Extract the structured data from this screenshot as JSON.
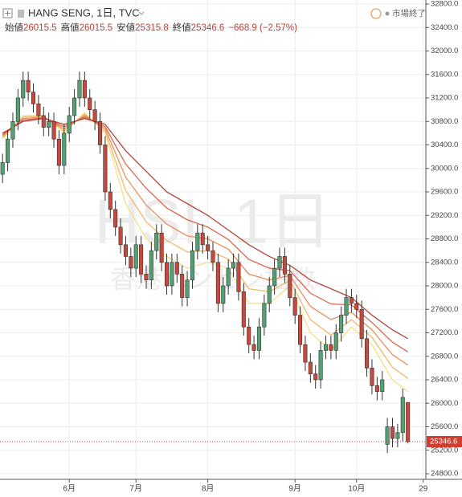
{
  "chart_data": {
    "type": "candlestick",
    "title": "HANG SENG, 1日, TVC",
    "status": "市場終了",
    "ohlc_labels": {
      "open": "始値",
      "high": "高値",
      "low": "安値",
      "close": "終値"
    },
    "change": "−668.9 (−2.57%)",
    "watermark": "HSI, 1日",
    "watermark_subtitle": "香港ハンセン指数",
    "categories": [
      null,
      null,
      null,
      null,
      null,
      null,
      null,
      null,
      null,
      null,
      null,
      null,
      null,
      "6月",
      null,
      null,
      null,
      null,
      null,
      null,
      null,
      null,
      null,
      null,
      null,
      null,
      "7月",
      null,
      null,
      null,
      null,
      null,
      null,
      null,
      null,
      null,
      null,
      null,
      null,
      null,
      "8月",
      null,
      null,
      null,
      null,
      null,
      null,
      null,
      null,
      null,
      null,
      null,
      null,
      null,
      null,
      null,
      null,
      "9月",
      null,
      null,
      null,
      null,
      null,
      null,
      null,
      null,
      null,
      null,
      null,
      "10月",
      null,
      null,
      null,
      null,
      null,
      null,
      null,
      null,
      null,
      null,
      null,
      null,
      "29"
    ],
    "open": [
      29900,
      30100,
      30500,
      30800,
      31200,
      31500,
      31300,
      31100,
      30900,
      30700,
      30800,
      30500,
      30050,
      30600,
      30900,
      31200,
      31500,
      31200,
      31000,
      30800,
      30400,
      29600,
      29300,
      29000,
      28700,
      28500,
      28300,
      28700,
      28200,
      28100,
      28600,
      28900,
      28400,
      28000,
      28400,
      28200,
      27800,
      28100,
      28600,
      28900,
      28700,
      28600,
      28400,
      27700,
      28000,
      28300,
      28400,
      27900,
      27300,
      27000,
      26900,
      27300,
      27700,
      28000,
      28300,
      28500,
      28200,
      27800,
      27500,
      27000,
      26700,
      26500,
      26400,
      26900,
      27000,
      26900,
      27200,
      27500,
      27800,
      27700,
      27600,
      27100,
      26600,
      26300,
      26200,
      25300,
      25600,
      25400,
      25500,
      26015.5,
      null,
      null,
      null
    ],
    "high": [
      30250,
      30650,
      30950,
      31350,
      31650,
      31650,
      31450,
      31250,
      31050,
      30950,
      30950,
      30650,
      30750,
      31050,
      31350,
      31650,
      31650,
      31350,
      31150,
      30950,
      30550,
      29750,
      29450,
      29150,
      28850,
      28650,
      28850,
      28850,
      28350,
      28750,
      29050,
      29050,
      28550,
      28550,
      28550,
      28350,
      28250,
      28750,
      29050,
      29050,
      28850,
      28750,
      28550,
      28150,
      28450,
      28550,
      28550,
      28050,
      27450,
      27150,
      27450,
      27850,
      28150,
      28450,
      28650,
      28650,
      28350,
      27950,
      27650,
      27150,
      26850,
      26650,
      27050,
      27150,
      27150,
      27350,
      27650,
      27950,
      27950,
      27850,
      27750,
      27250,
      26750,
      26450,
      26550,
      25750,
      25750,
      25650,
      26250,
      26015.5,
      null,
      null,
      null
    ],
    "low": [
      29750,
      29950,
      30350,
      30650,
      31050,
      31150,
      30950,
      30750,
      30550,
      30550,
      30350,
      29900,
      29900,
      30450,
      30750,
      31050,
      31050,
      30850,
      30650,
      30250,
      29450,
      29150,
      28850,
      28550,
      28350,
      28150,
      28150,
      28050,
      27950,
      27950,
      28450,
      28250,
      27850,
      27850,
      28050,
      27650,
      27650,
      27950,
      28450,
      28550,
      28450,
      28250,
      27550,
      27550,
      27850,
      28150,
      27750,
      27150,
      26850,
      26750,
      26750,
      27150,
      27550,
      27850,
      28150,
      28050,
      27650,
      27350,
      26850,
      26550,
      26350,
      26250,
      26250,
      26750,
      26750,
      26750,
      27050,
      27350,
      27550,
      27450,
      26950,
      26450,
      26150,
      26050,
      26050,
      25150,
      25250,
      25250,
      25350,
      25315.8,
      null,
      null,
      null
    ],
    "close": [
      30100,
      30500,
      30800,
      31200,
      31500,
      31300,
      31100,
      30900,
      30700,
      30800,
      30500,
      30050,
      30600,
      30900,
      31200,
      31500,
      31200,
      31000,
      30800,
      30400,
      29600,
      29300,
      29000,
      28700,
      28500,
      28300,
      28700,
      28200,
      28100,
      28600,
      28900,
      28400,
      28000,
      28400,
      28200,
      27800,
      28100,
      28600,
      28900,
      28700,
      28600,
      28400,
      27700,
      28000,
      28300,
      28400,
      27900,
      27300,
      27000,
      26900,
      27300,
      27700,
      28000,
      28300,
      28500,
      28200,
      27800,
      27500,
      27000,
      26700,
      26500,
      26400,
      26900,
      27000,
      26900,
      27200,
      27500,
      27800,
      27700,
      27600,
      27100,
      26600,
      26300,
      26200,
      26400,
      25600,
      25400,
      25500,
      26100,
      25346.6,
      null,
      null,
      null
    ],
    "up_color": "#53a072",
    "down_color": "#c8483b",
    "last_price_color": "#d33c2f",
    "ribbon": {
      "x": [
        0,
        4,
        8,
        12,
        16,
        20,
        24,
        28,
        32,
        36,
        40,
        44,
        48,
        52,
        56,
        60,
        64,
        68,
        72,
        76,
        79
      ],
      "lines": [
        {
          "color": "#f6df86",
          "values": [
            30500,
            30900,
            30900,
            30600,
            30950,
            30600,
            29400,
            28800,
            28500,
            28300,
            28400,
            28300,
            27700,
            27700,
            28000,
            27200,
            26900,
            27300,
            27000,
            26400,
            26200
          ]
        },
        {
          "color": "#f2b86c",
          "values": [
            30525,
            30875,
            30890,
            30640,
            30925,
            30640,
            29625,
            29090,
            28775,
            28575,
            28600,
            28460,
            27950,
            27900,
            28090,
            27425,
            27160,
            27425,
            27125,
            26610,
            26425
          ]
        },
        {
          "color": "#ea8f5c",
          "values": [
            30550,
            30850,
            30875,
            30675,
            30900,
            30675,
            29850,
            29375,
            29050,
            28850,
            28800,
            28625,
            28200,
            28100,
            28175,
            27650,
            27425,
            27550,
            27250,
            26825,
            26650
          ]
        },
        {
          "color": "#d8664c",
          "values": [
            30575,
            30825,
            30860,
            30710,
            30875,
            30710,
            30075,
            29660,
            29325,
            29125,
            29000,
            28790,
            28450,
            28300,
            28260,
            27875,
            27690,
            27675,
            27375,
            27040,
            26875
          ]
        },
        {
          "color": "#b3443a",
          "values": [
            30600,
            30800,
            30850,
            30750,
            30850,
            30750,
            30300,
            29950,
            29600,
            29400,
            29200,
            28950,
            28700,
            28500,
            28350,
            28100,
            27950,
            27800,
            27500,
            27250,
            27100
          ]
        }
      ]
    },
    "ylim": [
      24800,
      32800
    ],
    "yticks": [
      {
        "value": 24800,
        "label": "24800.0"
      },
      {
        "value": 25200,
        "label": "25200.0"
      },
      {
        "value": 25600,
        "label": "25600.0"
      },
      {
        "value": 26000,
        "label": "26000.0"
      },
      {
        "value": 26400,
        "label": "26400.0"
      },
      {
        "value": 26800,
        "label": "26800.0"
      },
      {
        "value": 27200,
        "label": "27200.0"
      },
      {
        "value": 27600,
        "label": "27600.0"
      },
      {
        "value": 28000,
        "label": "28000.0"
      },
      {
        "value": 28400,
        "label": "28400.0"
      },
      {
        "value": 28800,
        "label": "28800.0"
      },
      {
        "value": 29200,
        "label": "29200.0"
      },
      {
        "value": 29600,
        "label": "29600.0"
      },
      {
        "value": 30000,
        "label": "30000.0"
      },
      {
        "value": 30400,
        "label": "30400.0"
      },
      {
        "value": 30800,
        "label": "30800.0"
      },
      {
        "value": 31200,
        "label": "31200.0"
      },
      {
        "value": 31600,
        "label": "31600.0"
      },
      {
        "value": 32000,
        "label": "32000.0"
      },
      {
        "value": 32400,
        "label": "32400.0"
      },
      {
        "value": 32800,
        "label": "32800.0"
      }
    ],
    "grid": true
  }
}
